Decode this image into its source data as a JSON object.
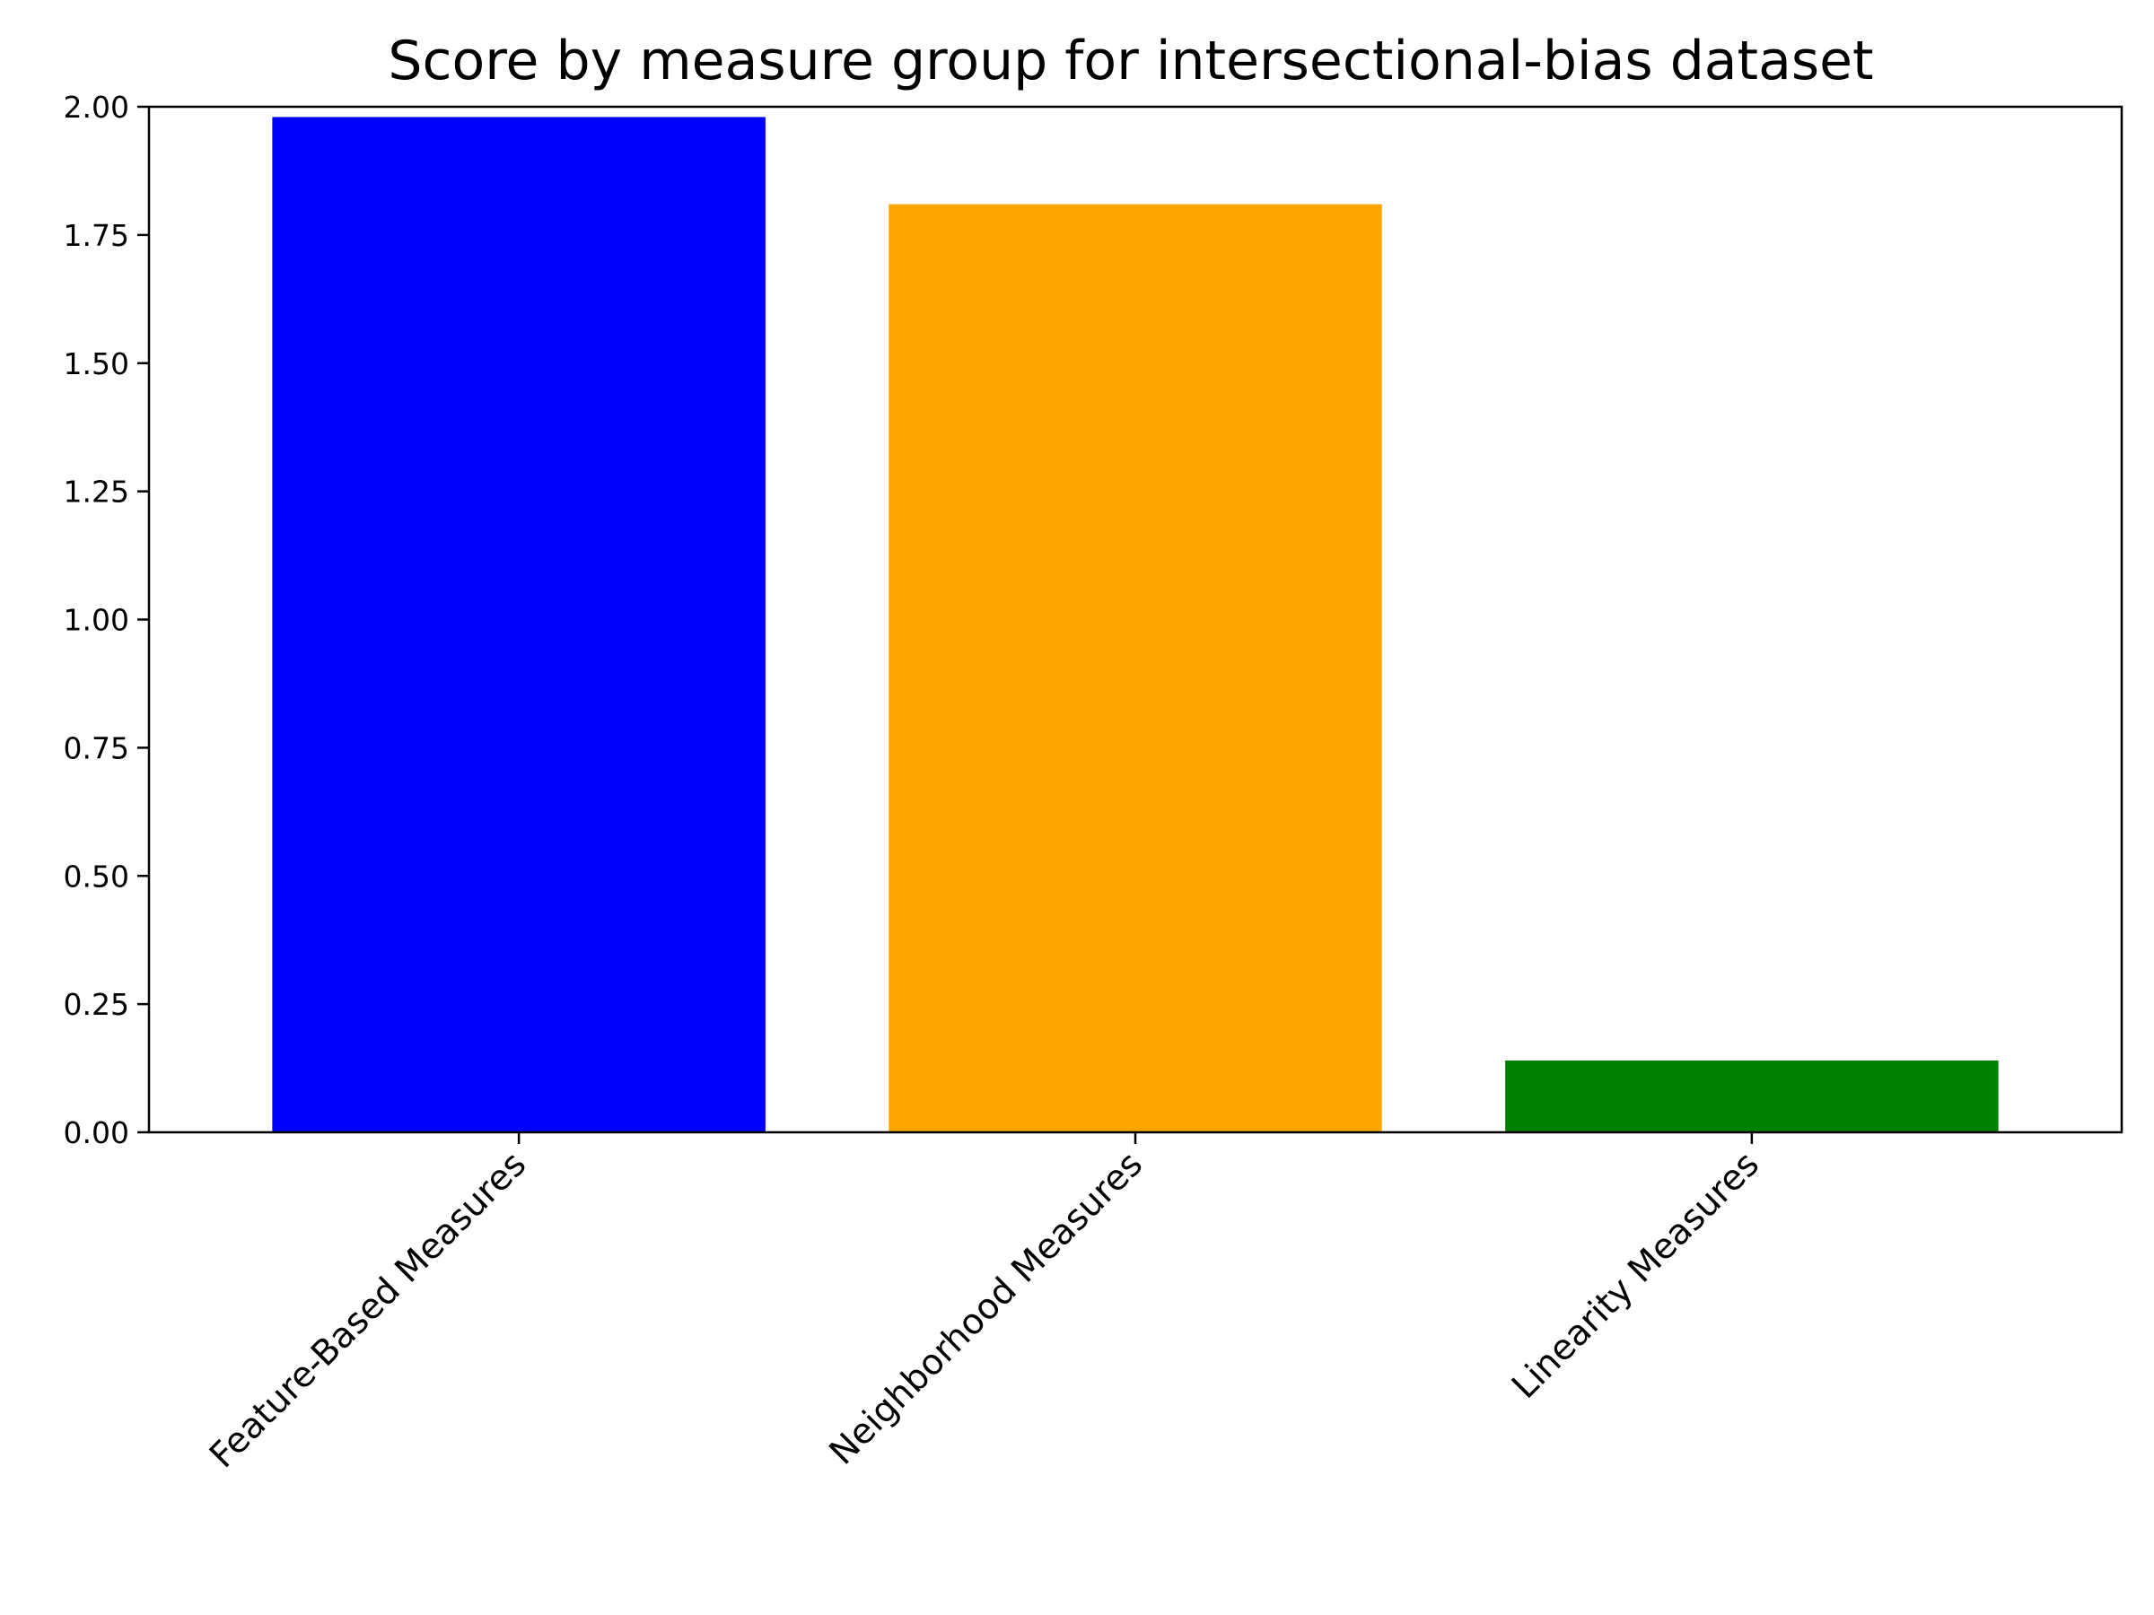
{
  "chart_data": {
    "type": "bar",
    "title": "Score by measure group for intersectional-bias dataset",
    "xlabel": "",
    "ylabel": "",
    "categories": [
      "Feature-Based Measures",
      "Neighborhood Measures",
      "Linearity Measures"
    ],
    "values": [
      1.98,
      1.81,
      0.14
    ],
    "colors": [
      "#0000ff",
      "#ffa500",
      "#008000"
    ],
    "ylim": [
      0,
      2.0
    ],
    "yticks": [
      "0.00",
      "0.25",
      "0.50",
      "0.75",
      "1.00",
      "1.25",
      "1.50",
      "1.75",
      "2.00"
    ],
    "grid": false,
    "legend": "none"
  }
}
